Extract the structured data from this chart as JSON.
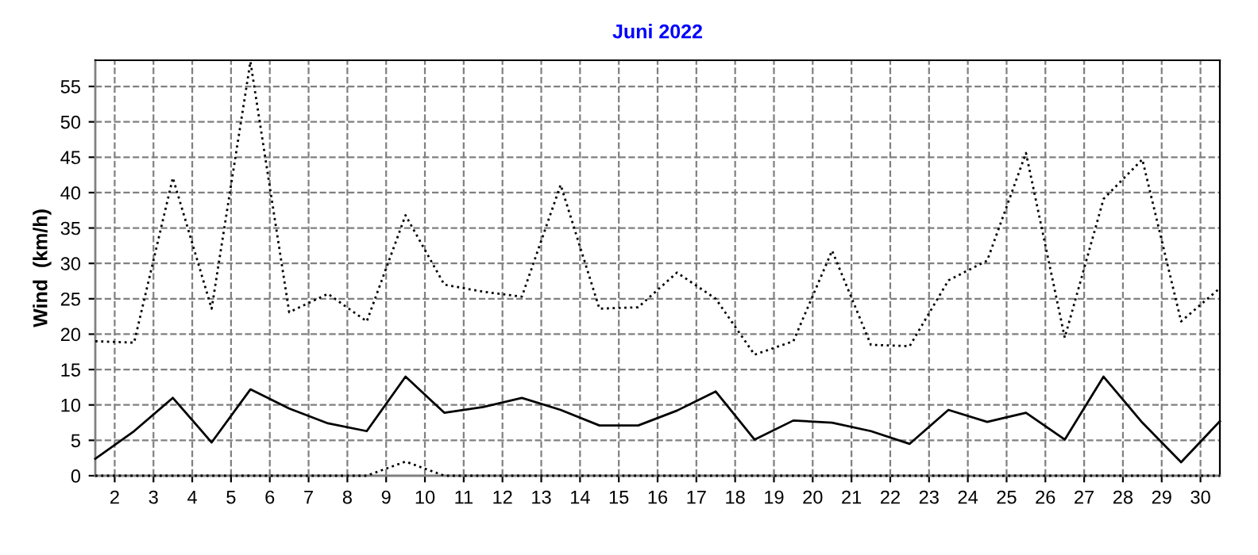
{
  "chart_data": {
    "type": "line",
    "title": "Juni 2022",
    "ylabel": "Wind  (km/h)",
    "x": [
      1.5,
      2.5,
      3.5,
      4.5,
      5.5,
      6.5,
      7.5,
      8.5,
      9.5,
      10.5,
      11.5,
      12.5,
      13.5,
      14.5,
      15.5,
      16.5,
      17.5,
      18.5,
      19.5,
      20.5,
      21.5,
      22.5,
      23.5,
      24.5,
      25.5,
      26.5,
      27.5,
      28.5,
      29.5,
      30.5
    ],
    "series": [
      {
        "color": "#000000",
        "line_style": "dotted",
        "values": [
          19.0,
          18.8,
          42.1,
          23.6,
          58.5,
          23.1,
          25.7,
          21.8,
          36.8,
          27.0,
          26.0,
          25.3,
          41.1,
          23.6,
          23.8,
          28.7,
          25.0,
          17.1,
          19.0,
          31.8,
          18.5,
          18.3,
          27.6,
          30.4,
          45.6,
          19.5,
          39.1,
          44.7,
          21.8,
          26.5
        ]
      },
      {
        "color": "#000000",
        "line_style": "solid",
        "values": [
          2.4,
          6.3,
          11.0,
          4.7,
          12.2,
          9.5,
          7.4,
          6.3,
          14.0,
          8.9,
          9.7,
          11.0,
          9.3,
          7.1,
          7.1,
          9.2,
          11.9,
          5.1,
          7.8,
          7.5,
          6.3,
          4.5,
          9.3,
          7.6,
          8.9,
          5.1,
          14.0,
          7.5,
          1.9,
          7.7
        ]
      },
      {
        "color": "#000000",
        "line_style": "dotted",
        "values": [
          0,
          0,
          0,
          0,
          0,
          0,
          0,
          0,
          2.0,
          0,
          0,
          0,
          0,
          0,
          0,
          0,
          0,
          0,
          0,
          0,
          0,
          0,
          0,
          0,
          0,
          0,
          0,
          0,
          0,
          0
        ]
      }
    ],
    "xlim": [
      1.5,
      30.5
    ],
    "xticks": [
      2,
      3,
      4,
      5,
      6,
      7,
      8,
      9,
      10,
      11,
      12,
      13,
      14,
      15,
      16,
      17,
      18,
      19,
      20,
      21,
      22,
      23,
      24,
      25,
      26,
      27,
      28,
      29,
      30
    ],
    "ylim": [
      0,
      58.7
    ],
    "yticks": [
      0,
      5,
      10,
      15,
      20,
      25,
      30,
      35,
      40,
      45,
      50,
      55
    ],
    "grid": true,
    "marker": "none"
  }
}
